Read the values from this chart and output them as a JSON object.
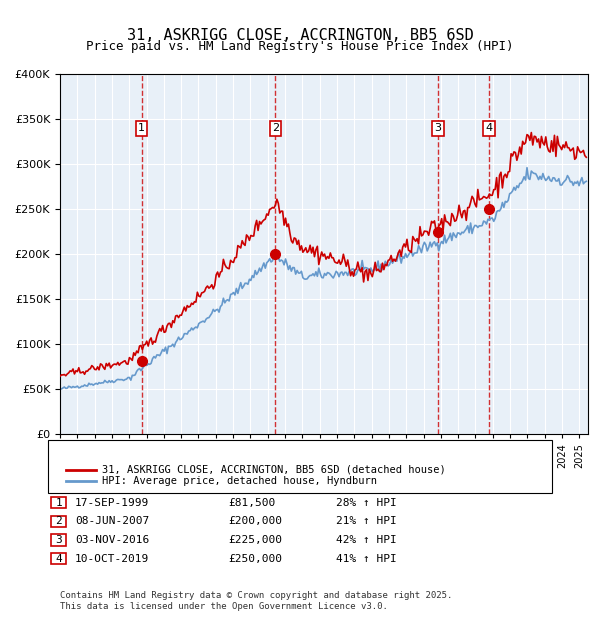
{
  "title": "31, ASKRIGG CLOSE, ACCRINGTON, BB5 6SD",
  "subtitle": "Price paid vs. HM Land Registry's House Price Index (HPI)",
  "legend_entry1": "31, ASKRIGG CLOSE, ACCRINGTON, BB5 6SD (detached house)",
  "legend_entry2": "HPI: Average price, detached house, Hyndburn",
  "footer": "Contains HM Land Registry data © Crown copyright and database right 2025.\nThis data is licensed under the Open Government Licence v3.0.",
  "sales": [
    {
      "num": 1,
      "date": "17-SEP-1999",
      "date_dec": 1999.71,
      "price": 81500,
      "hpi_pct": "28% ↑ HPI"
    },
    {
      "num": 2,
      "date": "08-JUN-2007",
      "date_dec": 2007.44,
      "price": 200000,
      "hpi_pct": "21% ↑ HPI"
    },
    {
      "num": 3,
      "date": "03-NOV-2016",
      "date_dec": 2016.84,
      "price": 225000,
      "hpi_pct": "42% ↑ HPI"
    },
    {
      "num": 4,
      "date": "10-OCT-2019",
      "date_dec": 2019.78,
      "price": 250000,
      "hpi_pct": "41% ↑ HPI"
    }
  ],
  "xmin": 1995.0,
  "xmax": 2025.5,
  "ymin": 0,
  "ymax": 400000,
  "red_color": "#cc0000",
  "blue_color": "#6699cc",
  "bg_color": "#ddeeff",
  "plot_bg": "#e8f0f8",
  "grid_color": "#ffffff",
  "dashed_color": "#cc0000"
}
